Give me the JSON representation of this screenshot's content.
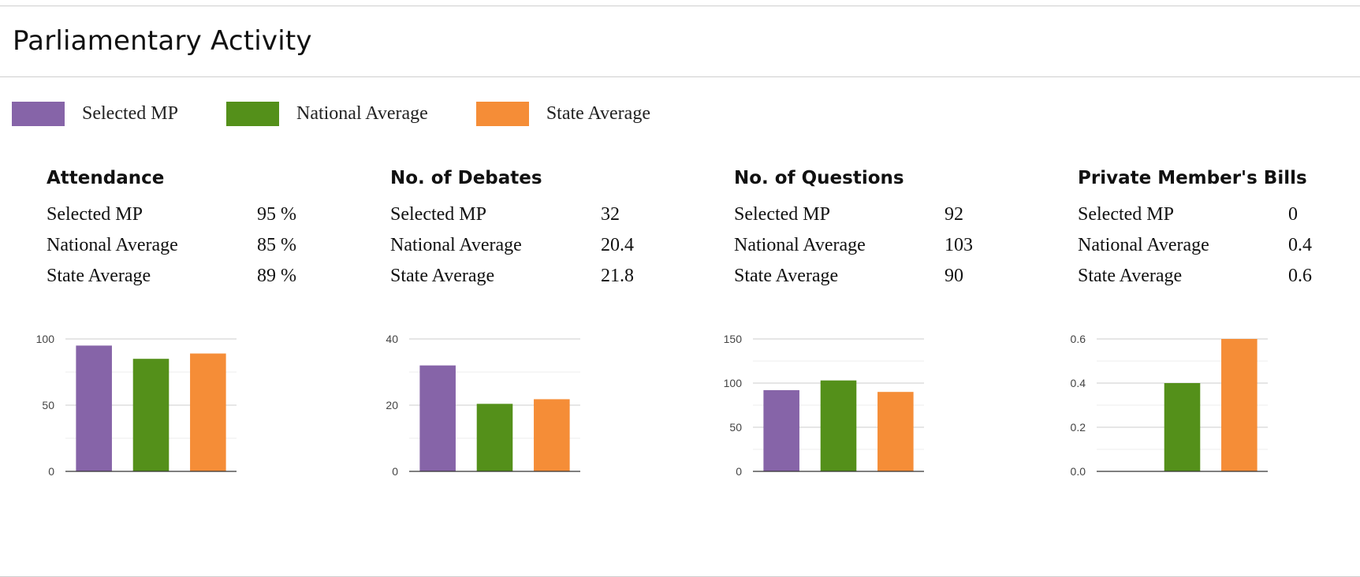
{
  "title": "Parliamentary Activity",
  "legend": [
    {
      "label": "Selected MP",
      "color": "#8664a8"
    },
    {
      "label": "National Average",
      "color": "#54901a"
    },
    {
      "label": "State Average",
      "color": "#f58d37"
    }
  ],
  "panels": [
    {
      "title": "Attendance",
      "stats": [
        {
          "name": "Selected MP",
          "value": "95 %"
        },
        {
          "name": "National Average",
          "value": "85 %"
        },
        {
          "name": "State Average",
          "value": "89 %"
        }
      ]
    },
    {
      "title": "No. of Debates",
      "stats": [
        {
          "name": "Selected MP",
          "value": "32"
        },
        {
          "name": "National Average",
          "value": "20.4"
        },
        {
          "name": "State Average",
          "value": "21.8"
        }
      ]
    },
    {
      "title": "No. of Questions",
      "stats": [
        {
          "name": "Selected MP",
          "value": "92"
        },
        {
          "name": "National Average",
          "value": "103"
        },
        {
          "name": "State Average",
          "value": "90"
        }
      ]
    },
    {
      "title": "Private Member's Bills",
      "stats": [
        {
          "name": "Selected MP",
          "value": "0"
        },
        {
          "name": "National Average",
          "value": "0.4"
        },
        {
          "name": "State Average",
          "value": "0.6"
        }
      ]
    }
  ],
  "chart_data": [
    {
      "type": "bar",
      "title": "Attendance",
      "categories": [
        "Selected MP",
        "National Average",
        "State Average"
      ],
      "values": [
        95,
        85,
        89
      ],
      "colors": [
        "#8664a8",
        "#54901a",
        "#f58d37"
      ],
      "ylim": [
        0,
        100
      ],
      "yticks": [
        0,
        50,
        100
      ],
      "ytick_labels": [
        "0",
        "50",
        "100"
      ],
      "minor_gridlines": true,
      "legend": "top-left"
    },
    {
      "type": "bar",
      "title": "No. of Debates",
      "categories": [
        "Selected MP",
        "National Average",
        "State Average"
      ],
      "values": [
        32,
        20.4,
        21.8
      ],
      "colors": [
        "#8664a8",
        "#54901a",
        "#f58d37"
      ],
      "ylim": [
        0,
        40
      ],
      "yticks": [
        0,
        20,
        40
      ],
      "ytick_labels": [
        "0",
        "20",
        "40"
      ],
      "minor_gridlines": true,
      "legend": "top-left"
    },
    {
      "type": "bar",
      "title": "No. of Questions",
      "categories": [
        "Selected MP",
        "National Average",
        "State Average"
      ],
      "values": [
        92,
        103,
        90
      ],
      "colors": [
        "#8664a8",
        "#54901a",
        "#f58d37"
      ],
      "ylim": [
        0,
        150
      ],
      "yticks": [
        0,
        50,
        100,
        150
      ],
      "ytick_labels": [
        "0",
        "50",
        "100",
        "150"
      ],
      "minor_gridlines": true,
      "legend": "top-left"
    },
    {
      "type": "bar",
      "title": "Private Member's Bills",
      "categories": [
        "Selected MP",
        "National Average",
        "State Average"
      ],
      "values": [
        0,
        0.4,
        0.6
      ],
      "colors": [
        "#8664a8",
        "#54901a",
        "#f58d37"
      ],
      "ylim": [
        0,
        0.6
      ],
      "yticks": [
        0,
        0.2,
        0.4,
        0.6
      ],
      "ytick_labels": [
        "0.0",
        "0.2",
        "0.4",
        "0.6"
      ],
      "minor_gridlines": true,
      "legend": "top-left"
    }
  ]
}
